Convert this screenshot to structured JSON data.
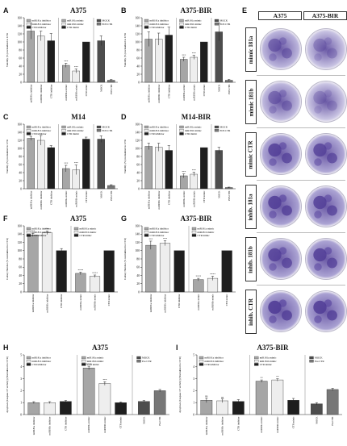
{
  "panel_letters": [
    "A",
    "B",
    "C",
    "D",
    "E",
    "F",
    "G",
    "H",
    "I"
  ],
  "colony_panel": {
    "letter": "E",
    "column_headers": [
      "A375",
      "A375-BIR"
    ],
    "row_labels": [
      "mimic 181a",
      "mimic 181b",
      "mimic CTR",
      "inhib. 181a",
      "inhib. 181b",
      "inhib. CTR"
    ]
  },
  "colors": {
    "miR181a_inhibitor": "#a6a6a6",
    "miR181b_inhibitor": "#eeeeee",
    "CTR_inhibitor": "#1e1e1e",
    "miR181a_mimic": "#a6a6a6",
    "miR181b_mimic": "#eeeeee",
    "CTR_mimic": "#1e1e1e",
    "MOCK": "#4d4d4d",
    "POS_CTR": "#777777",
    "stain": "#6b5aa6"
  },
  "chart_data": [
    {
      "id": "A",
      "type": "bar",
      "title": "A375",
      "ylabel": "Viability (%) normalized to CTR",
      "ylim": [
        0,
        160
      ],
      "yticks": [
        0,
        20,
        40,
        60,
        80,
        100,
        120,
        140,
        160
      ],
      "categories": [
        "miR181a inhibitor",
        "miR181b inhibitor",
        "CTR inhibitor",
        "miR181a mimic",
        "miR181b mimic",
        "CTR mimic",
        "MOCK",
        "POS CTR"
      ],
      "groups": [
        3,
        3,
        2
      ],
      "values": [
        127,
        115,
        103,
        42,
        28,
        100,
        103,
        5
      ],
      "errors": [
        20,
        12,
        18,
        5,
        5,
        0,
        12,
        2
      ],
      "labels": [
        "",
        "",
        "",
        "***",
        "***",
        "",
        "",
        ""
      ],
      "legend": [
        {
          "name": "miR181a inhibitor",
          "key": "miR181a_inhibitor"
        },
        {
          "name": "miR181b inhibitor",
          "key": "miR181b_inhibitor"
        },
        {
          "name": "CTR inhibitor",
          "key": "CTR_inhibitor"
        },
        {
          "name": "miR181a mimic",
          "key": "miR181a_mimic"
        },
        {
          "name": "miR181b mimic",
          "key": "miR181b_mimic"
        },
        {
          "name": "CTR mimic",
          "key": "CTR_mimic"
        },
        {
          "name": "MOCK",
          "key": "MOCK"
        },
        {
          "name": "POS CTR",
          "key": "POS_CTR"
        }
      ]
    },
    {
      "id": "B",
      "type": "bar",
      "title": "A375-BIR",
      "ylabel": "Viability (%) normalized to CTR",
      "ylim": [
        0,
        160
      ],
      "yticks": [
        0,
        20,
        40,
        60,
        80,
        100,
        120,
        140,
        160
      ],
      "categories": [
        "miR181a inhibitor",
        "miR181b inhibitor",
        "CTR inhibitor",
        "miR181a mimic",
        "miR181b mimic",
        "CTR mimic",
        "MOCK",
        "POS CTR"
      ],
      "groups": [
        3,
        3,
        2
      ],
      "values": [
        107,
        107,
        117,
        57,
        62,
        100,
        125,
        5
      ],
      "errors": [
        18,
        15,
        20,
        5,
        5,
        0,
        22,
        2
      ],
      "labels": [
        "",
        "",
        "",
        "***",
        "***",
        "",
        "",
        ""
      ],
      "legend": [
        {
          "name": "miR181a inhibitor",
          "key": "miR181a_inhibitor"
        },
        {
          "name": "miR181b inhibitor",
          "key": "miR181b_inhibitor"
        },
        {
          "name": "CTR inhibitor",
          "key": "CTR_inhibitor"
        },
        {
          "name": "miR181a mimic",
          "key": "miR181a_mimic"
        },
        {
          "name": "miR181b mimic",
          "key": "miR181b_mimic"
        },
        {
          "name": "CTR mimic",
          "key": "CTR_mimic"
        },
        {
          "name": "MOCK",
          "key": "MOCK"
        },
        {
          "name": "POS CTR",
          "key": "POS_CTR"
        }
      ]
    },
    {
      "id": "C",
      "type": "bar",
      "title": "M14",
      "ylabel": "Viability (%) normalized to CTR",
      "ylim": [
        0,
        160
      ],
      "yticks": [
        0,
        20,
        40,
        60,
        80,
        100,
        120,
        140,
        160
      ],
      "categories": [
        "miR181a inhibitor",
        "miR181b inhibitor",
        "CTR inhibitor",
        "miR181a mimic",
        "miR181b mimic",
        "CTR mimic",
        "MOCK",
        "POS CTR"
      ],
      "groups": [
        3,
        3,
        2
      ],
      "values": [
        125,
        120,
        102,
        50,
        47,
        123,
        123,
        8
      ],
      "errors": [
        5,
        12,
        5,
        8,
        12,
        5,
        8,
        2
      ],
      "labels": [
        "",
        "",
        "",
        "***",
        "***",
        "",
        "",
        ""
      ],
      "legend": [
        {
          "name": "miR181a inhibitor",
          "key": "miR181a_inhibitor"
        },
        {
          "name": "miR181b inhibitor",
          "key": "miR181b_inhibitor"
        },
        {
          "name": "CTR inhibitor",
          "key": "CTR_inhibitor"
        },
        {
          "name": "miR181a mimic",
          "key": "miR181a_mimic"
        },
        {
          "name": "miR181b mimic",
          "key": "miR181b_mimic"
        },
        {
          "name": "CTR mimic",
          "key": "CTR_mimic"
        },
        {
          "name": "MOCK",
          "key": "MOCK"
        },
        {
          "name": "POS CTR",
          "key": "POS_CTR"
        }
      ]
    },
    {
      "id": "D",
      "type": "bar",
      "title": "M14-BIR",
      "ylabel": "Viability (%) normalized to CTR",
      "ylim": [
        0,
        160
      ],
      "yticks": [
        0,
        20,
        40,
        60,
        80,
        100,
        120,
        140,
        160
      ],
      "categories": [
        "miR181a inhibitor",
        "miR181b inhibitor",
        "CTR inhibitor",
        "miR181a mimic",
        "miR181b mimic",
        "CTR mimic",
        "MOCK",
        "POS CTR"
      ],
      "groups": [
        3,
        3,
        2
      ],
      "values": [
        105,
        103,
        95,
        32,
        36,
        102,
        95,
        3
      ],
      "errors": [
        8,
        10,
        12,
        5,
        5,
        0,
        8,
        1
      ],
      "labels": [
        "",
        "",
        "",
        "***",
        "***",
        "",
        "",
        ""
      ],
      "legend": [
        {
          "name": "miR181a inhibitor",
          "key": "miR181a_inhibitor"
        },
        {
          "name": "miR181b inhibitor",
          "key": "miR181b_inhibitor"
        },
        {
          "name": "CTR inhibitor",
          "key": "CTR_inhibitor"
        },
        {
          "name": "miR181a mimic",
          "key": "miR181a_mimic"
        },
        {
          "name": "miR181b mimic",
          "key": "miR181b_mimic"
        },
        {
          "name": "CTR mimic",
          "key": "CTR_mimic"
        },
        {
          "name": "MOCK",
          "key": "MOCK"
        },
        {
          "name": "POS CTR",
          "key": "POS_CTR"
        }
      ]
    },
    {
      "id": "F",
      "type": "bar",
      "title": "A375",
      "ylabel": "Colony Number (% normalized to CTR)",
      "ylim": [
        0,
        160
      ],
      "yticks": [
        0,
        20,
        40,
        60,
        80,
        100,
        120,
        140,
        160
      ],
      "categories": [
        "miR181a inhibitor",
        "miR181b inhibitor",
        "CTR inhibitor",
        "miR181a mimic",
        "miR181b mimic",
        "CTR mimic"
      ],
      "groups": [
        3,
        3
      ],
      "values": [
        138,
        143,
        100,
        45,
        38,
        100
      ],
      "errors": [
        4,
        4,
        5,
        3,
        3,
        0
      ],
      "labels": [
        "***",
        "***",
        "",
        "****",
        "****",
        ""
      ],
      "legend": [
        {
          "name": "miR181a inhibitor",
          "key": "miR181a_inhibitor"
        },
        {
          "name": "miR181b inhibitor",
          "key": "miR181b_inhibitor"
        },
        {
          "name": "CTR inhibitor",
          "key": "CTR_inhibitor"
        },
        {
          "name": "miR181a mimic",
          "key": "miR181a_mimic"
        },
        {
          "name": "miR181b mimic",
          "key": "miR181b_mimic"
        },
        {
          "name": "CTR mimic",
          "key": "CTR_mimic"
        }
      ]
    },
    {
      "id": "G",
      "type": "bar",
      "title": "A375-BIR",
      "ylabel": "Colony Number (% normalized to CTR)",
      "ylim": [
        0,
        160
      ],
      "yticks": [
        0,
        20,
        40,
        60,
        80,
        100,
        120,
        140,
        160
      ],
      "categories": [
        "miR181a inhibitor",
        "miR181b inhibitor",
        "CTR inhibitor",
        "miR181a mimic",
        "miR181b mimic",
        "CTR mimic"
      ],
      "groups": [
        3,
        3
      ],
      "values": [
        113,
        118,
        100,
        30,
        33,
        100
      ],
      "errors": [
        10,
        6,
        0,
        3,
        5,
        0
      ],
      "labels": [
        "***",
        "***",
        "",
        "****",
        "****",
        ""
      ],
      "legend": [
        {
          "name": "miR181a inhibitor",
          "key": "miR181a_inhibitor"
        },
        {
          "name": "miR181b inhibitor",
          "key": "miR181b_inhibitor"
        },
        {
          "name": "CTR inhibitor",
          "key": "CTR_inhibitor"
        },
        {
          "name": "miR181a mimic",
          "key": "miR181a_mimic"
        },
        {
          "name": "miR181b mimic",
          "key": "miR181b_mimic"
        },
        {
          "name": "CTR mimic",
          "key": "CTR_mimic"
        }
      ]
    },
    {
      "id": "H",
      "type": "bar",
      "title": "A375",
      "ylabel": "Apoptosis (Caspase 3/7 activity) (Normalized to CTR)",
      "ylim": [
        0,
        5
      ],
      "yticks": [
        0,
        1,
        2,
        3,
        4,
        5
      ],
      "categories": [
        "miR181a inhibitor",
        "miR181b inhibitor",
        "CTR inhibitor",
        "miR181a mimic",
        "miR181b mimic",
        "CTR mimic",
        "MOCK",
        "Pos CTR"
      ],
      "groups": [
        3,
        3,
        2
      ],
      "values": [
        1.0,
        1.0,
        1.1,
        3.9,
        2.6,
        1.0,
        1.1,
        2.0
      ],
      "errors": [
        0.08,
        0.08,
        0.08,
        0.15,
        0.15,
        0.05,
        0.08,
        0.1
      ],
      "labels": [
        "",
        "",
        "",
        "****",
        "***",
        "",
        "",
        ""
      ],
      "legend": [
        {
          "name": "miR181a inhibitor",
          "key": "miR181a_inhibitor"
        },
        {
          "name": "miR181b inhibitor",
          "key": "miR181b_inhibitor"
        },
        {
          "name": "CTR inhibitor",
          "key": "CTR_inhibitor"
        },
        {
          "name": "miR181a mimic",
          "key": "miR181a_mimic"
        },
        {
          "name": "miR181b mimic",
          "key": "miR181b_mimic"
        },
        {
          "name": "CTR mimic",
          "key": "CTR_mimic"
        },
        {
          "name": "MOCK",
          "key": "MOCK"
        },
        {
          "name": "Pos CTR",
          "key": "POS_CTR"
        }
      ]
    },
    {
      "id": "I",
      "type": "bar",
      "title": "A375-BIR",
      "ylabel": "Apoptosis (Caspase 3/7 activity) (Normalized to CTR)",
      "ylim": [
        0,
        5
      ],
      "yticks": [
        0,
        1,
        2,
        3,
        4,
        5
      ],
      "categories": [
        "miR181a inhibitor",
        "miR181b inhibitor",
        "CTR inhibitor",
        "miR181a mimic",
        "miR181b mimic",
        "CTR mimic",
        "MOCK",
        "Pos CTR"
      ],
      "groups": [
        3,
        3,
        2
      ],
      "values": [
        1.2,
        1.15,
        1.1,
        2.8,
        2.9,
        1.2,
        0.9,
        2.1
      ],
      "errors": [
        0.2,
        0.15,
        0.15,
        0.1,
        0.1,
        0.15,
        0.1,
        0.1
      ],
      "labels": [
        "ns",
        "ns",
        "",
        "**",
        "**",
        "",
        "",
        ""
      ],
      "legend": [
        {
          "name": "miR181a inhibitor",
          "key": "miR181a_inhibitor"
        },
        {
          "name": "miR181b inhibitor",
          "key": "miR181b_inhibitor"
        },
        {
          "name": "CTR inhibitor",
          "key": "CTR_inhibitor"
        },
        {
          "name": "miR181a mimic",
          "key": "miR181a_mimic"
        },
        {
          "name": "miR181b mimic",
          "key": "miR181b_mimic"
        },
        {
          "name": "CTR mimic",
          "key": "CTR_mimic"
        },
        {
          "name": "MOCK",
          "key": "MOCK"
        },
        {
          "name": "Pos CTR",
          "key": "POS_CTR"
        }
      ]
    }
  ]
}
